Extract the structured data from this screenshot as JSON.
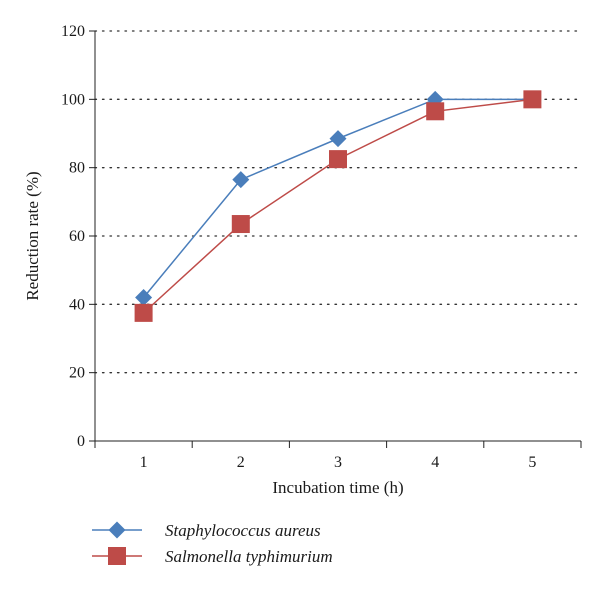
{
  "chart_data": {
    "type": "line",
    "title": "",
    "xlabel": "Incubation time (h)",
    "ylabel": "Reduction rate (%)",
    "x": [
      1,
      2,
      3,
      4,
      5
    ],
    "x_tick_labels": [
      "1",
      "2",
      "3",
      "4",
      "5"
    ],
    "ylim": [
      0,
      120
    ],
    "y_ticks": [
      0,
      20,
      40,
      60,
      80,
      100,
      120
    ],
    "y_tick_labels": [
      "0",
      "20",
      "40",
      "60",
      "80",
      "100",
      "120"
    ],
    "grid": "horizontal dotted",
    "legend_position": "bottom-left",
    "series": [
      {
        "name": "Staphylococcus aureus",
        "values": [
          42,
          76.5,
          88.5,
          100,
          100
        ],
        "color": "#4a7ebb",
        "marker": "diamond"
      },
      {
        "name": "Salmonella typhimurium",
        "values": [
          37.5,
          63.5,
          82.5,
          96.5,
          100
        ],
        "color": "#be4b48",
        "marker": "square"
      }
    ]
  }
}
